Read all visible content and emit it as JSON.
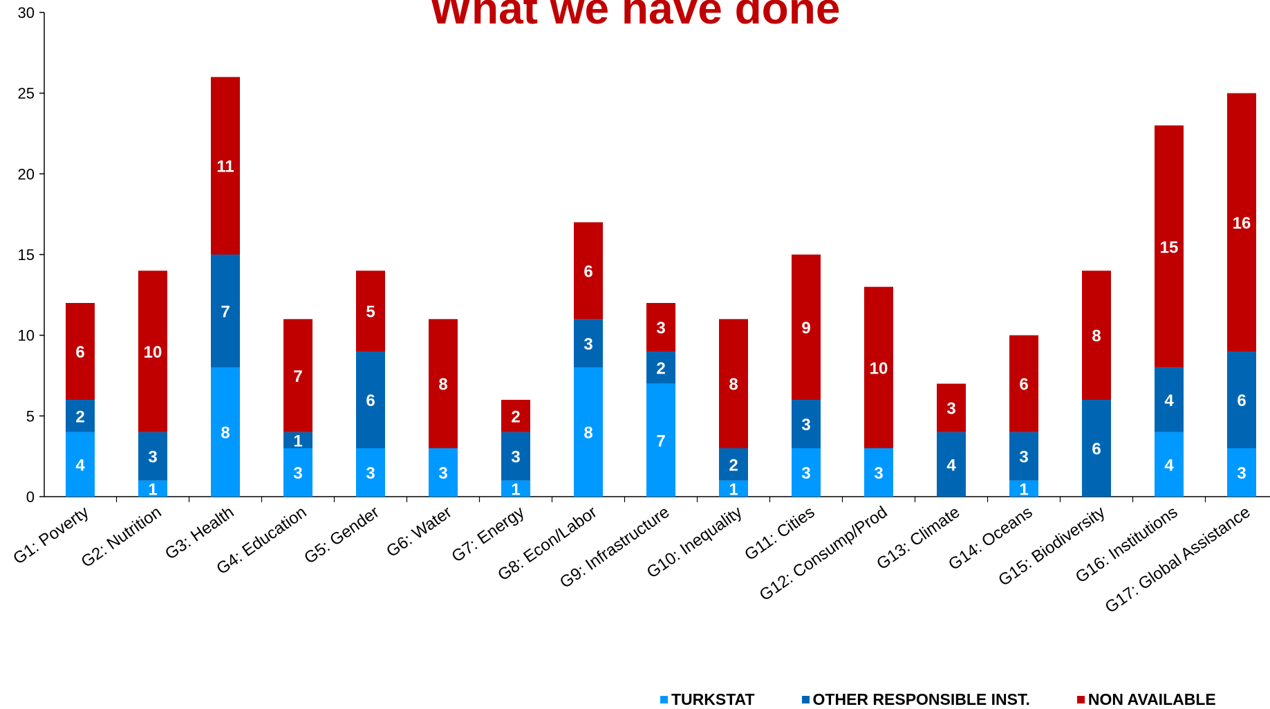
{
  "colors": {
    "turkstat": "#0099ff",
    "other": "#0066b3",
    "non_available": "#c00000",
    "title": "#c00000"
  },
  "title": "What we have done",
  "chart_data": {
    "type": "bar",
    "stacked": true,
    "title": "What we have done",
    "xlabel": "",
    "ylabel": "",
    "ylim": [
      0,
      30
    ],
    "yticks": [
      0,
      5,
      10,
      15,
      20,
      25,
      30
    ],
    "grid": false,
    "legend_position": "bottom-right",
    "categories": [
      "G1: Poverty",
      "G2: Nutrition",
      "G3: Health",
      "G4: Education",
      "G5: Gender",
      "G6: Water",
      "G7: Energy",
      "G8: Econ/Labor",
      "G9: Infrastructure",
      "G10: Inequality",
      "G11: Cities",
      "G12: Consump/Prod",
      "G13: Climate",
      "G14: Oceans",
      "G15: Biodiversity",
      "G16: Institutions",
      "G17: Global Assistance"
    ],
    "series": [
      {
        "name": "TURKSTAT",
        "color": "#0099ff",
        "values": [
          4,
          1,
          8,
          3,
          3,
          3,
          1,
          8,
          7,
          1,
          3,
          3,
          0,
          1,
          0,
          4,
          3
        ]
      },
      {
        "name": "OTHER RESPONSIBLE INST.",
        "color": "#0066b3",
        "values": [
          2,
          3,
          7,
          1,
          6,
          0,
          3,
          3,
          2,
          2,
          3,
          0,
          4,
          3,
          6,
          4,
          6
        ]
      },
      {
        "name": "NON AVAILABLE",
        "color": "#c00000",
        "values": [
          6,
          10,
          11,
          7,
          5,
          8,
          2,
          6,
          3,
          8,
          9,
          10,
          3,
          6,
          8,
          15,
          16
        ]
      }
    ]
  }
}
